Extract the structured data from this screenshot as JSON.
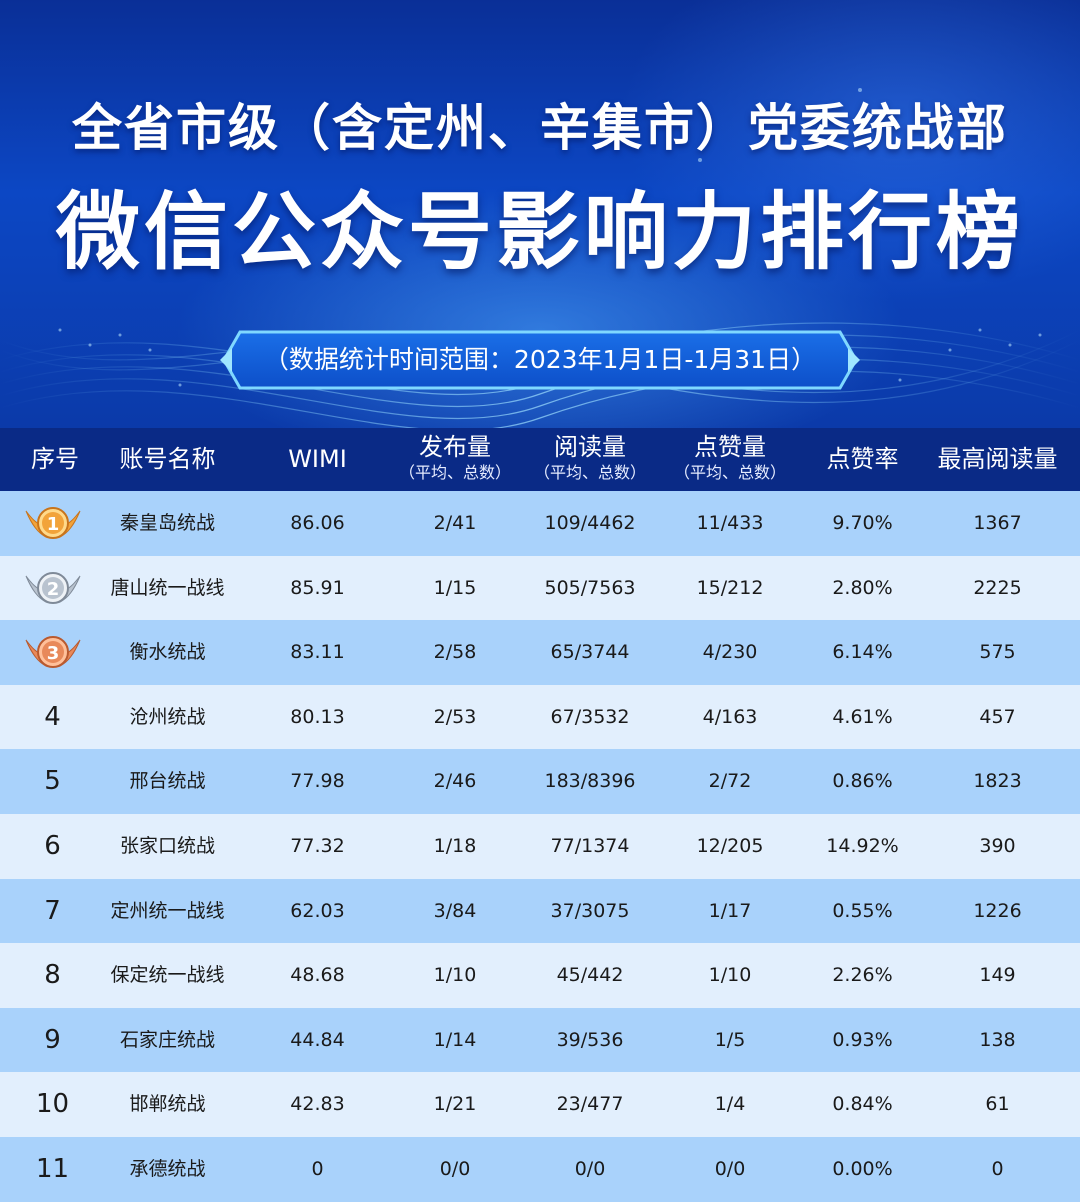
{
  "header": {
    "title_line1": "全省市级（含定州、辛集市）党委统战部",
    "title_line2": "微信公众号影响力排行榜",
    "date_range": "（数据统计时间范围：2023年1月1日-1月31日）"
  },
  "table": {
    "columns": [
      {
        "main": "序号",
        "sub": ""
      },
      {
        "main": "账号名称",
        "sub": ""
      },
      {
        "main": "WIMI",
        "sub": ""
      },
      {
        "main": "发布量",
        "sub": "（平均、总数）"
      },
      {
        "main": "阅读量",
        "sub": "（平均、总数）"
      },
      {
        "main": "点赞量",
        "sub": "（平均、总数）"
      },
      {
        "main": "点赞率",
        "sub": ""
      },
      {
        "main": "最高阅读量",
        "sub": ""
      }
    ],
    "rows": [
      {
        "rank": "1",
        "medal": "gold",
        "name": "秦皇岛统战",
        "wimi": "86.06",
        "posts": "2/41",
        "reads": "109/4462",
        "likes": "11/433",
        "like_rate": "9.70%",
        "max_reads": "1367"
      },
      {
        "rank": "2",
        "medal": "silver",
        "name": "唐山统一战线",
        "wimi": "85.91",
        "posts": "1/15",
        "reads": "505/7563",
        "likes": "15/212",
        "like_rate": "2.80%",
        "max_reads": "2225"
      },
      {
        "rank": "3",
        "medal": "bronze",
        "name": "衡水统战",
        "wimi": "83.11",
        "posts": "2/58",
        "reads": "65/3744",
        "likes": "4/230",
        "like_rate": "6.14%",
        "max_reads": "575"
      },
      {
        "rank": "4",
        "medal": "",
        "name": "沧州统战",
        "wimi": "80.13",
        "posts": "2/53",
        "reads": "67/3532",
        "likes": "4/163",
        "like_rate": "4.61%",
        "max_reads": "457"
      },
      {
        "rank": "5",
        "medal": "",
        "name": "邢台统战",
        "wimi": "77.98",
        "posts": "2/46",
        "reads": "183/8396",
        "likes": "2/72",
        "like_rate": "0.86%",
        "max_reads": "1823"
      },
      {
        "rank": "6",
        "medal": "",
        "name": "张家口统战",
        "wimi": "77.32",
        "posts": "1/18",
        "reads": "77/1374",
        "likes": "12/205",
        "like_rate": "14.92%",
        "max_reads": "390"
      },
      {
        "rank": "7",
        "medal": "",
        "name": "定州统一战线",
        "wimi": "62.03",
        "posts": "3/84",
        "reads": "37/3075",
        "likes": "1/17",
        "like_rate": "0.55%",
        "max_reads": "1226"
      },
      {
        "rank": "8",
        "medal": "",
        "name": "保定统一战线",
        "wimi": "48.68",
        "posts": "1/10",
        "reads": "45/442",
        "likes": "1/10",
        "like_rate": "2.26%",
        "max_reads": "149"
      },
      {
        "rank": "9",
        "medal": "",
        "name": "石家庄统战",
        "wimi": "44.84",
        "posts": "1/14",
        "reads": "39/536",
        "likes": "1/5",
        "like_rate": "0.93%",
        "max_reads": "138"
      },
      {
        "rank": "10",
        "medal": "",
        "name": "邯郸统战",
        "wimi": "42.83",
        "posts": "1/21",
        "reads": "23/477",
        "likes": "1/4",
        "like_rate": "0.84%",
        "max_reads": "61"
      },
      {
        "rank": "11",
        "medal": "",
        "name": "承德统战",
        "wimi": "0",
        "posts": "0/0",
        "reads": "0/0",
        "likes": "0/0",
        "like_rate": "0.00%",
        "max_reads": "0"
      }
    ]
  },
  "colors": {
    "header_bg": "#0c47c4",
    "table_header_bg": "#0a2a86",
    "row_dark": "#a9d2fb",
    "row_light": "#e2effd",
    "gold": "#f2a33a",
    "silver": "#b9c3cf",
    "bronze": "#e8895a"
  }
}
